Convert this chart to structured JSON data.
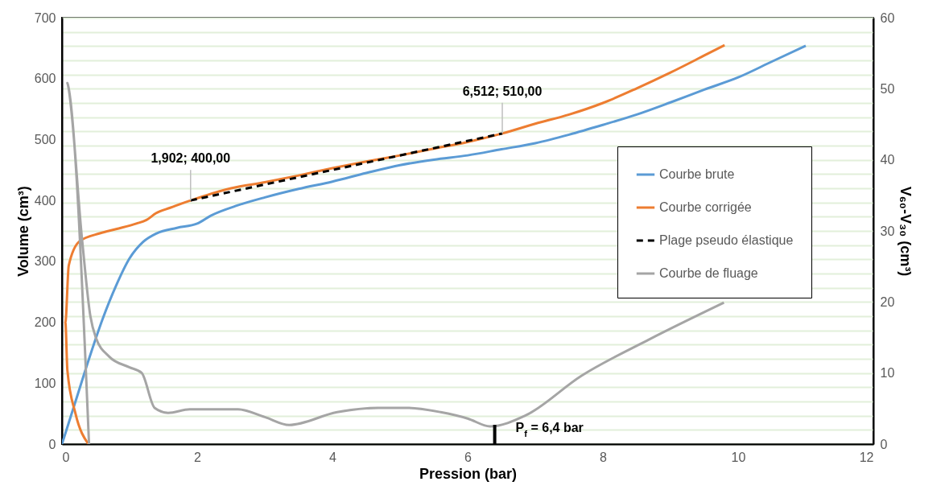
{
  "chart_data": {
    "type": "line",
    "xlabel": "Pression (bar)",
    "ylabel": "Volume (cm³)",
    "y2label": "V₆₀-V₃₀ (cm³)",
    "xlim": [
      0,
      12
    ],
    "xticks": [
      0,
      2,
      4,
      6,
      8,
      10,
      12
    ],
    "ylim": [
      0,
      700
    ],
    "yticks": [
      0,
      100,
      200,
      300,
      400,
      500,
      600,
      700
    ],
    "y2lim": [
      0,
      60
    ],
    "y2ticks": [
      0,
      {
        "value": 2,
        "label": null
      },
      {
        "value": 4,
        "label": null
      },
      {
        "value": 6,
        "label": null
      },
      {
        "value": 8,
        "label": null
      },
      10,
      {
        "value": 12,
        "label": null
      },
      {
        "value": 14,
        "label": null
      },
      {
        "value": 16,
        "label": null
      },
      {
        "value": 18,
        "label": null
      },
      20,
      {
        "value": 22,
        "label": null
      },
      {
        "value": 24,
        "label": null
      },
      {
        "value": 26,
        "label": null
      },
      {
        "value": 28,
        "label": null
      },
      30,
      {
        "value": 32,
        "label": null
      },
      {
        "value": 34,
        "label": null
      },
      {
        "value": 36,
        "label": null
      },
      {
        "value": 38,
        "label": null
      },
      40,
      {
        "value": 42,
        "label": null
      },
      {
        "value": 44,
        "label": null
      },
      {
        "value": 46,
        "label": null
      },
      {
        "value": 48,
        "label": null
      },
      50,
      {
        "value": 52,
        "label": null
      },
      {
        "value": 54,
        "label": null
      },
      {
        "value": 56,
        "label": null
      },
      {
        "value": 58,
        "label": null
      },
      60
    ],
    "grid": "y2",
    "legend": "right",
    "line_style": "solid",
    "series": [
      {
        "name": "Courbe brute",
        "color": "#5b9bd5",
        "x": [
          0,
          0.2,
          0.4,
          0.6,
          0.8,
          1.0,
          1.2,
          1.4,
          1.7,
          2.0,
          2.2,
          2.6,
          3.0,
          3.5,
          4.0,
          4.5,
          5.0,
          5.5,
          6.0,
          6.5,
          7.0,
          7.5,
          8.0,
          8.5,
          9.0,
          9.5,
          10.0,
          10.5,
          11.0
        ],
        "values": [
          0,
          70,
          140,
          205,
          260,
          305,
          332,
          346,
          355,
          362,
          375,
          392,
          405,
          419,
          431,
          445,
          458,
          467,
          474,
          484,
          494,
          508,
          524,
          541,
          561,
          582,
          602,
          628,
          654
        ]
      },
      {
        "name": "Courbe corrigée",
        "color": "#ed7d31",
        "x": [
          0.39,
          0.2,
          0.08,
          0.05,
          0.1,
          0.26,
          0.56,
          0.8,
          1.1,
          1.25,
          1.39,
          1.6,
          1.902,
          2.5,
          3.0,
          3.5,
          4.0,
          4.5,
          5.0,
          5.5,
          6.0,
          6.512,
          7.0,
          7.5,
          8.0,
          8.5,
          9.0,
          9.5,
          9.8
        ],
        "values": [
          0,
          50,
          121,
          200,
          293,
          333,
          346,
          353,
          362,
          368,
          379,
          388,
          400,
          420,
          430,
          441,
          453,
          464,
          474,
          485,
          496,
          510,
          526,
          541,
          560,
          584,
          610,
          638,
          655
        ]
      },
      {
        "name": "Plage pseudo élastique",
        "color": "#000000",
        "line_style": "dashed",
        "x": [
          1.902,
          6.512
        ],
        "values": [
          400,
          510
        ]
      },
      {
        "name": "Courbe de fluage",
        "color": "#a5a5a5",
        "axis": "y2",
        "x": [
          0.4,
          0.08,
          0.3,
          0.42,
          0.5,
          0.7,
          1.0,
          1.18,
          1.37,
          1.57,
          1.89,
          2.6,
          3.0,
          3.36,
          4.07,
          4.67,
          5.1,
          5.6,
          6.0,
          6.33,
          6.85,
          7.68,
          8.68,
          9.79
        ],
        "values": [
          0,
          50.8,
          28.5,
          18,
          15,
          12.3,
          10.8,
          10,
          5.1,
          4.4,
          4.9,
          4.9,
          3.8,
          2.7,
          4.5,
          5.1,
          5.1,
          4.5,
          3.6,
          2.5,
          4.0,
          9.6,
          14.7,
          19.9
        ]
      }
    ],
    "annotations": [
      {
        "text": "1,902; 400,00",
        "x": 1.902,
        "y": 400
      },
      {
        "text": "6,512; 510,00",
        "x": 6.512,
        "y": 510
      }
    ],
    "ref_lines": [
      {
        "axis": "x",
        "value": 6.4,
        "label": "P$_{f}$ = 6,4 bar",
        "color": "#000000"
      }
    ]
  }
}
